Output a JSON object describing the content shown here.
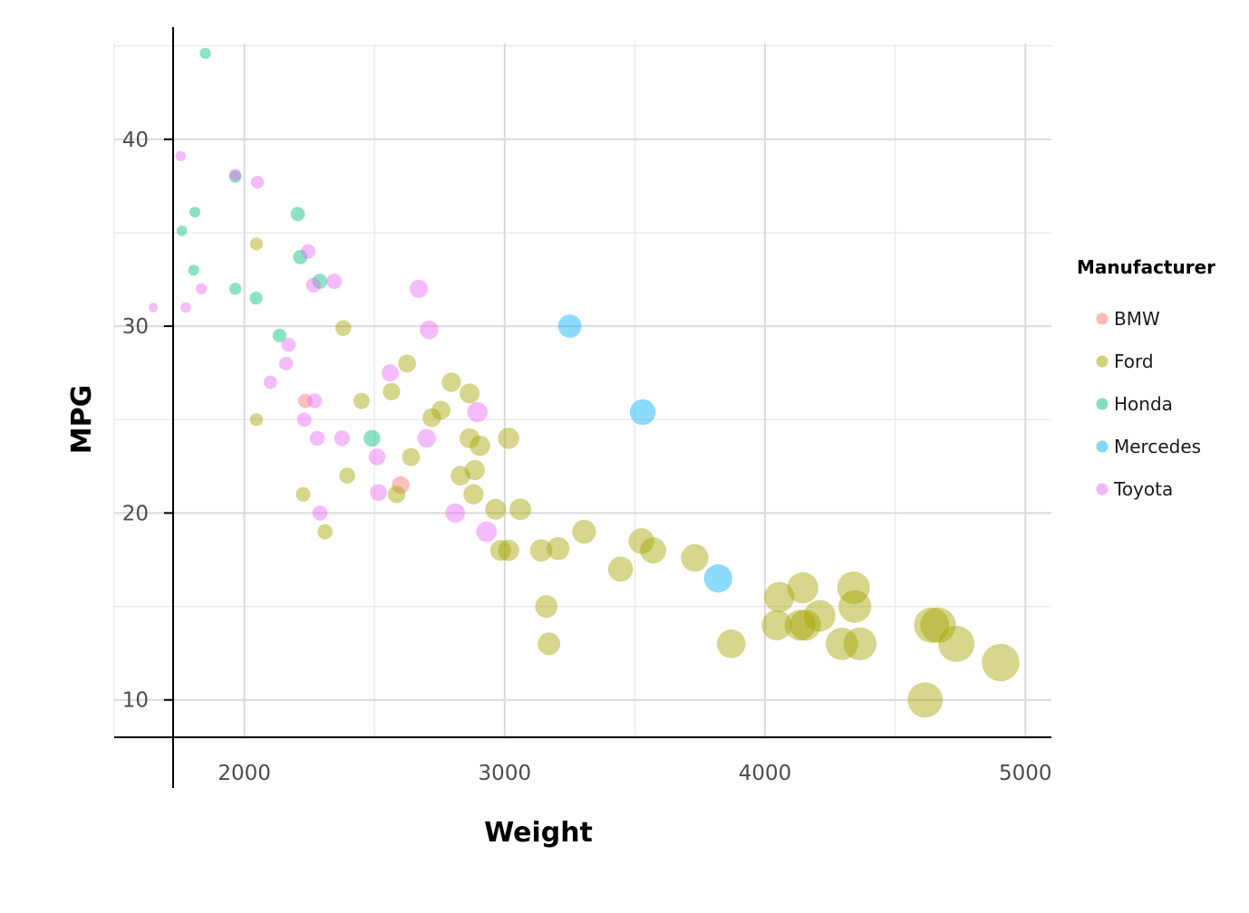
{
  "chart_data": {
    "type": "scatter",
    "xlabel": "Weight",
    "ylabel": "MPG",
    "xlim": [
      1500,
      5100
    ],
    "ylim": [
      8,
      46
    ],
    "x_ticks": [
      2000,
      3000,
      4000,
      5000
    ],
    "y_ticks": [
      10,
      20,
      30,
      40
    ],
    "x_tick_labels": [
      "2000",
      "3000",
      "4000",
      "5000"
    ],
    "y_tick_labels": [
      "10",
      "20",
      "30",
      "40"
    ],
    "grid": true,
    "size_encoding": "Weight",
    "legend": {
      "title": "Manufacturer",
      "position": "right",
      "entries": [
        "BMW",
        "Ford",
        "Honda",
        "Mercedes",
        "Toyota"
      ]
    },
    "series": [
      {
        "name": "BMW",
        "color": "#F8766D",
        "points": [
          [
            2600,
            21.5
          ],
          [
            2234,
            26
          ]
        ]
      },
      {
        "name": "Ford",
        "color": "#A3A500",
        "points": [
          [
            2046,
            34.4
          ],
          [
            2046,
            25
          ],
          [
            2380,
            29.9
          ],
          [
            2226,
            21
          ],
          [
            2310,
            19
          ],
          [
            2395,
            22
          ],
          [
            2450,
            26
          ],
          [
            2565,
            26.5
          ],
          [
            2625,
            28
          ],
          [
            2585,
            21
          ],
          [
            2640,
            23
          ],
          [
            2720,
            25.1
          ],
          [
            2755,
            25.5
          ],
          [
            2795,
            27
          ],
          [
            2830,
            22
          ],
          [
            2865,
            26.4
          ],
          [
            2865,
            24
          ],
          [
            2885,
            22.3
          ],
          [
            2880,
            21
          ],
          [
            2905,
            23.6
          ],
          [
            2965,
            20.2
          ],
          [
            2985,
            18
          ],
          [
            3015,
            18
          ],
          [
            3015,
            24
          ],
          [
            3060,
            20.2
          ],
          [
            3140,
            18
          ],
          [
            3160,
            15
          ],
          [
            3170,
            13
          ],
          [
            3205,
            18.1
          ],
          [
            3305,
            19
          ],
          [
            3445,
            17
          ],
          [
            3525,
            18.5
          ],
          [
            3570,
            18
          ],
          [
            3730,
            17.6
          ],
          [
            3870,
            13
          ],
          [
            4045,
            14
          ],
          [
            4055,
            15.5
          ],
          [
            4135,
            14
          ],
          [
            4145,
            16
          ],
          [
            4155,
            14
          ],
          [
            4210,
            14.5
          ],
          [
            4295,
            13
          ],
          [
            4340,
            16
          ],
          [
            4345,
            15
          ],
          [
            4365,
            13
          ],
          [
            4615,
            10
          ],
          [
            4640,
            14
          ],
          [
            4665,
            14
          ],
          [
            4735,
            13
          ],
          [
            4905,
            12
          ]
        ]
      },
      {
        "name": "Honda",
        "color": "#00BF7D",
        "points": [
          [
            1850,
            44.6
          ],
          [
            1965,
            38
          ],
          [
            1810,
            36.1
          ],
          [
            1760,
            35.1
          ],
          [
            1805,
            33
          ],
          [
            1965,
            32
          ],
          [
            2045,
            31.5
          ],
          [
            2205,
            36
          ],
          [
            2215,
            33.7
          ],
          [
            2290,
            32.4
          ],
          [
            2135,
            29.5
          ],
          [
            2490,
            24
          ]
        ]
      },
      {
        "name": "Mercedes",
        "color": "#00B0F6",
        "points": [
          [
            3250,
            30
          ],
          [
            3530,
            25.4
          ],
          [
            3820,
            16.5
          ]
        ]
      },
      {
        "name": "Toyota",
        "color": "#E76BF3",
        "points": [
          [
            1650,
            31
          ],
          [
            1755,
            39.1
          ],
          [
            1775,
            31
          ],
          [
            1835,
            32
          ],
          [
            1965,
            38.1
          ],
          [
            2050,
            37.7
          ],
          [
            2245,
            34
          ],
          [
            2265,
            32.2
          ],
          [
            2345,
            32.4
          ],
          [
            2670,
            32
          ],
          [
            2710,
            29.8
          ],
          [
            2160,
            28
          ],
          [
            2170,
            29
          ],
          [
            2100,
            27
          ],
          [
            2560,
            27.5
          ],
          [
            2270,
            26
          ],
          [
            2230,
            25
          ],
          [
            2280,
            24
          ],
          [
            2375,
            24
          ],
          [
            2700,
            24
          ],
          [
            2895,
            25.4
          ],
          [
            2510,
            23
          ],
          [
            2515,
            21.1
          ],
          [
            2290,
            20
          ],
          [
            2810,
            20
          ],
          [
            2930,
            19
          ]
        ]
      }
    ]
  }
}
